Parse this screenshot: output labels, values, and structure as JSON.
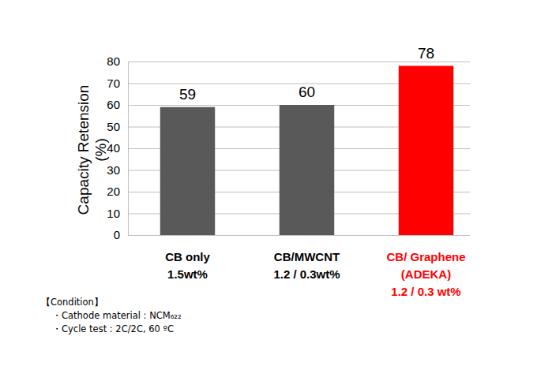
{
  "chart_data": {
    "type": "bar",
    "y_label": "Capacity Retension\n(%)",
    "categories": [
      "CB only\n1.5wt%",
      "CB/MWCNT\n1.2 / 0.3wt%",
      "CB/ Graphene\n(ADEKA)\n1.2 / 0.3 wt%"
    ],
    "values": [
      59,
      60,
      78
    ],
    "color": "#595959",
    "colors": [
      "#595959",
      "#595959",
      "#ff0000"
    ],
    "ylim": [
      0,
      80
    ],
    "yticks": [
      0,
      10,
      20,
      30,
      40,
      50,
      60,
      70,
      80
    ],
    "grid": true,
    "data_labels": true,
    "annotations": [
      "【Condition】",
      "・Cathode material : NCM₆₂₂",
      "・Cycle test : 2C/2C, 60 ºC"
    ]
  }
}
